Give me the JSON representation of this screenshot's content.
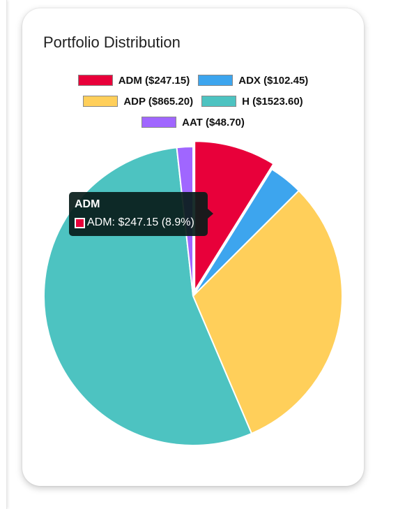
{
  "card": {
    "title": "Portfolio Distribution"
  },
  "chart_data": {
    "type": "pie",
    "categories": [
      "ADM",
      "ADX",
      "ADP",
      "H",
      "AAT"
    ],
    "values": [
      247.15,
      102.45,
      865.2,
      1523.6,
      48.7
    ],
    "colors": [
      "#e8003a",
      "#3da5ee",
      "#ffcf5a",
      "#4dc3c1",
      "#a066ff"
    ],
    "legend_labels": [
      "ADM ($247.15)",
      "ADX ($102.45)",
      "ADP ($865.20)",
      "H ($1523.60)",
      "AAT ($48.70)"
    ],
    "legend_position": "top",
    "highlighted": "ADM"
  },
  "tooltip": {
    "title": "ADM",
    "text": "ADM: $247.15 (8.9%)",
    "color": "#e8003a"
  }
}
